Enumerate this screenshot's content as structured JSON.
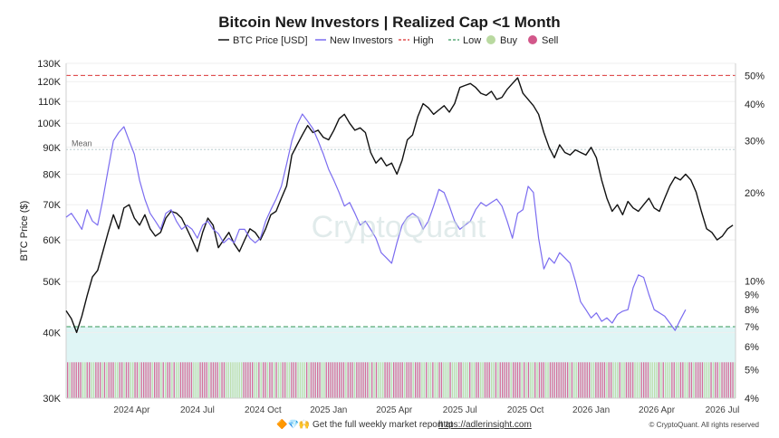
{
  "chart_data": {
    "type": "line",
    "title": "Bitcoin New Investors | Realized Cap <1 Month",
    "ylabel": "BTC Price ($)",
    "legend": [
      {
        "label": "BTC Price [USD]",
        "kind": "line",
        "color": "#111111"
      },
      {
        "label": "New Investors",
        "kind": "line",
        "color": "#7b6cf0"
      },
      {
        "label": "High",
        "kind": "dashed",
        "color": "#e05050"
      },
      {
        "label": "Low",
        "kind": "dashed",
        "color": "#5aaa78"
      },
      {
        "label": "Buy",
        "kind": "dot",
        "color": "#b9d9a0"
      },
      {
        "label": "Sell",
        "kind": "dot",
        "color": "#d2578a"
      }
    ],
    "legend_position": "top-center",
    "y_left": {
      "scale": "log",
      "range": [
        30000,
        130000
      ],
      "ticks": [
        {
          "v": 30000,
          "label": "30K"
        },
        {
          "v": 40000,
          "label": "40K"
        },
        {
          "v": 50000,
          "label": "50K"
        },
        {
          "v": 60000,
          "label": "60K"
        },
        {
          "v": 70000,
          "label": "70K"
        },
        {
          "v": 80000,
          "label": "80K"
        },
        {
          "v": 90000,
          "label": "90K"
        },
        {
          "v": 100000,
          "label": "100K"
        },
        {
          "v": 110000,
          "label": "110K"
        },
        {
          "v": 120000,
          "label": "120K"
        },
        {
          "v": 130000,
          "label": "130K"
        }
      ]
    },
    "y_right": {
      "scale": "log",
      "range": [
        4,
        55
      ],
      "unit": "%",
      "ticks": [
        {
          "v": 4,
          "label": "4%"
        },
        {
          "v": 5,
          "label": "5%"
        },
        {
          "v": 6,
          "label": "6%"
        },
        {
          "v": 7,
          "label": "7%"
        },
        {
          "v": 8,
          "label": "8%"
        },
        {
          "v": 9,
          "label": "9%"
        },
        {
          "v": 10,
          "label": "10%"
        },
        {
          "v": 20,
          "label": "20%"
        },
        {
          "v": 30,
          "label": "30%"
        },
        {
          "v": 40,
          "label": "40%"
        },
        {
          "v": 50,
          "label": "50%"
        }
      ]
    },
    "x_range": [
      2024.0,
      2026.55
    ],
    "x_ticks": [
      {
        "v": 2024.25,
        "label": "2024 Apr"
      },
      {
        "v": 2024.5,
        "label": "2024 Jul"
      },
      {
        "v": 2024.75,
        "label": "2024 Oct"
      },
      {
        "v": 2025.0,
        "label": "2025 Jan"
      },
      {
        "v": 2025.25,
        "label": "2025 Apr"
      },
      {
        "v": 2025.5,
        "label": "2025 Jul"
      },
      {
        "v": 2025.75,
        "label": "2025 Oct"
      },
      {
        "v": 2026.0,
        "label": "2026 Jan"
      },
      {
        "v": 2026.25,
        "label": "2026 Apr"
      },
      {
        "v": 2026.5,
        "label": "2026 Jul"
      }
    ],
    "reference_lines": {
      "high": 50,
      "low": 7,
      "mean": {
        "value": 28,
        "label": "Mean"
      }
    },
    "bands": {
      "low_zone": [
        4,
        7
      ]
    },
    "series": [
      {
        "name": "BTC Price [USD]",
        "axis": "left",
        "color": "#111111",
        "points": [
          [
            2024.0,
            44000
          ],
          [
            2024.02,
            42500
          ],
          [
            2024.04,
            40000
          ],
          [
            2024.06,
            43000
          ],
          [
            2024.08,
            47000
          ],
          [
            2024.1,
            51000
          ],
          [
            2024.12,
            52500
          ],
          [
            2024.14,
            57000
          ],
          [
            2024.16,
            62000
          ],
          [
            2024.18,
            67000
          ],
          [
            2024.2,
            63000
          ],
          [
            2024.22,
            69000
          ],
          [
            2024.24,
            70000
          ],
          [
            2024.26,
            66000
          ],
          [
            2024.28,
            64000
          ],
          [
            2024.3,
            67000
          ],
          [
            2024.32,
            63000
          ],
          [
            2024.34,
            61000
          ],
          [
            2024.36,
            62000
          ],
          [
            2024.38,
            66000
          ],
          [
            2024.4,
            68000
          ],
          [
            2024.42,
            67500
          ],
          [
            2024.44,
            66000
          ],
          [
            2024.46,
            63000
          ],
          [
            2024.48,
            60000
          ],
          [
            2024.5,
            57000
          ],
          [
            2024.52,
            62000
          ],
          [
            2024.54,
            66000
          ],
          [
            2024.56,
            64000
          ],
          [
            2024.58,
            58000
          ],
          [
            2024.6,
            60000
          ],
          [
            2024.62,
            62000
          ],
          [
            2024.64,
            59000
          ],
          [
            2024.66,
            57000
          ],
          [
            2024.68,
            60000
          ],
          [
            2024.7,
            63000
          ],
          [
            2024.72,
            62000
          ],
          [
            2024.74,
            60000
          ],
          [
            2024.76,
            63000
          ],
          [
            2024.78,
            67000
          ],
          [
            2024.8,
            68000
          ],
          [
            2024.82,
            72000
          ],
          [
            2024.84,
            76000
          ],
          [
            2024.86,
            87000
          ],
          [
            2024.88,
            91000
          ],
          [
            2024.9,
            95000
          ],
          [
            2024.92,
            99000
          ],
          [
            2024.94,
            96000
          ],
          [
            2024.96,
            97000
          ],
          [
            2024.98,
            94000
          ],
          [
            2025.0,
            93000
          ],
          [
            2025.02,
            97000
          ],
          [
            2025.04,
            102000
          ],
          [
            2025.06,
            104000
          ],
          [
            2025.08,
            100000
          ],
          [
            2025.1,
            97000
          ],
          [
            2025.12,
            98000
          ],
          [
            2025.14,
            96000
          ],
          [
            2025.16,
            88000
          ],
          [
            2025.18,
            84000
          ],
          [
            2025.2,
            86000
          ],
          [
            2025.22,
            83000
          ],
          [
            2025.24,
            84000
          ],
          [
            2025.26,
            80000
          ],
          [
            2025.28,
            85000
          ],
          [
            2025.3,
            93000
          ],
          [
            2025.32,
            95000
          ],
          [
            2025.34,
            103000
          ],
          [
            2025.36,
            109000
          ],
          [
            2025.38,
            107000
          ],
          [
            2025.4,
            104000
          ],
          [
            2025.42,
            106000
          ],
          [
            2025.44,
            108000
          ],
          [
            2025.46,
            105000
          ],
          [
            2025.48,
            109000
          ],
          [
            2025.5,
            117000
          ],
          [
            2025.52,
            118000
          ],
          [
            2025.54,
            119000
          ],
          [
            2025.56,
            117000
          ],
          [
            2025.58,
            114000
          ],
          [
            2025.6,
            113000
          ],
          [
            2025.62,
            115000
          ],
          [
            2025.64,
            111000
          ],
          [
            2025.66,
            112000
          ],
          [
            2025.68,
            116000
          ],
          [
            2025.7,
            119000
          ],
          [
            2025.72,
            122000
          ],
          [
            2025.74,
            114000
          ],
          [
            2025.76,
            111000
          ],
          [
            2025.78,
            108000
          ],
          [
            2025.8,
            104000
          ],
          [
            2025.82,
            96000
          ],
          [
            2025.84,
            90000
          ],
          [
            2025.86,
            86000
          ],
          [
            2025.88,
            91000
          ],
          [
            2025.9,
            88000
          ],
          [
            2025.92,
            87000
          ],
          [
            2025.94,
            89000
          ],
          [
            2025.96,
            88000
          ],
          [
            2025.98,
            87000
          ],
          [
            2026.0,
            90000
          ],
          [
            2026.02,
            86000
          ],
          [
            2026.04,
            78000
          ],
          [
            2026.06,
            72000
          ],
          [
            2026.08,
            68000
          ],
          [
            2026.1,
            70000
          ],
          [
            2026.12,
            67000
          ],
          [
            2026.14,
            71000
          ],
          [
            2026.16,
            69000
          ],
          [
            2026.18,
            68000
          ],
          [
            2026.2,
            70000
          ],
          [
            2026.22,
            72000
          ],
          [
            2026.24,
            69000
          ],
          [
            2026.26,
            68000
          ],
          [
            2026.28,
            72000
          ],
          [
            2026.3,
            76000
          ],
          [
            2026.32,
            79000
          ],
          [
            2026.34,
            78000
          ],
          [
            2026.36,
            80000
          ],
          [
            2026.38,
            78000
          ],
          [
            2026.4,
            74000
          ],
          [
            2026.42,
            68000
          ],
          [
            2026.44,
            63000
          ],
          [
            2026.46,
            62000
          ],
          [
            2026.48,
            60000
          ],
          [
            2026.5,
            61000
          ],
          [
            2026.52,
            63000
          ],
          [
            2026.54,
            64000
          ]
        ]
      },
      {
        "name": "New Investors",
        "axis": "right",
        "color": "#7b6cf0",
        "points": [
          [
            2024.0,
            16.5
          ],
          [
            2024.02,
            17.0
          ],
          [
            2024.04,
            16.0
          ],
          [
            2024.06,
            15.0
          ],
          [
            2024.08,
            17.5
          ],
          [
            2024.1,
            16.0
          ],
          [
            2024.12,
            15.5
          ],
          [
            2024.14,
            19.0
          ],
          [
            2024.16,
            24.0
          ],
          [
            2024.18,
            30.0
          ],
          [
            2024.2,
            32.0
          ],
          [
            2024.22,
            33.5
          ],
          [
            2024.24,
            30.0
          ],
          [
            2024.26,
            27.0
          ],
          [
            2024.28,
            22.0
          ],
          [
            2024.3,
            19.0
          ],
          [
            2024.32,
            17.0
          ],
          [
            2024.34,
            16.0
          ],
          [
            2024.36,
            15.0
          ],
          [
            2024.38,
            17.0
          ],
          [
            2024.4,
            17.5
          ],
          [
            2024.42,
            16.0
          ],
          [
            2024.44,
            15.0
          ],
          [
            2024.46,
            15.5
          ],
          [
            2024.48,
            15.0
          ],
          [
            2024.5,
            14.0
          ],
          [
            2024.52,
            15.5
          ],
          [
            2024.54,
            16.0
          ],
          [
            2024.56,
            15.0
          ],
          [
            2024.58,
            14.5
          ],
          [
            2024.6,
            13.5
          ],
          [
            2024.62,
            14.0
          ],
          [
            2024.64,
            13.5
          ],
          [
            2024.66,
            15.0
          ],
          [
            2024.68,
            15.0
          ],
          [
            2024.7,
            14.0
          ],
          [
            2024.72,
            13.5
          ],
          [
            2024.74,
            14.0
          ],
          [
            2024.76,
            16.0
          ],
          [
            2024.78,
            17.5
          ],
          [
            2024.8,
            19.0
          ],
          [
            2024.82,
            21.0
          ],
          [
            2024.84,
            25.0
          ],
          [
            2024.86,
            30.0
          ],
          [
            2024.88,
            34.0
          ],
          [
            2024.9,
            37.0
          ],
          [
            2024.92,
            35.0
          ],
          [
            2024.94,
            33.0
          ],
          [
            2024.96,
            30.0
          ],
          [
            2024.98,
            27.0
          ],
          [
            2025.0,
            24.0
          ],
          [
            2025.02,
            22.0
          ],
          [
            2025.04,
            20.0
          ],
          [
            2025.06,
            18.0
          ],
          [
            2025.08,
            18.5
          ],
          [
            2025.1,
            17.0
          ],
          [
            2025.12,
            15.5
          ],
          [
            2025.14,
            16.0
          ],
          [
            2025.16,
            15.0
          ],
          [
            2025.18,
            14.0
          ],
          [
            2025.2,
            12.5
          ],
          [
            2025.22,
            12.0
          ],
          [
            2025.24,
            11.5
          ],
          [
            2025.26,
            13.5
          ],
          [
            2025.28,
            15.5
          ],
          [
            2025.3,
            16.5
          ],
          [
            2025.32,
            17.0
          ],
          [
            2025.34,
            16.5
          ],
          [
            2025.36,
            15.0
          ],
          [
            2025.38,
            16.0
          ],
          [
            2025.4,
            18.0
          ],
          [
            2025.42,
            20.5
          ],
          [
            2025.44,
            20.0
          ],
          [
            2025.46,
            18.0
          ],
          [
            2025.48,
            16.0
          ],
          [
            2025.5,
            15.0
          ],
          [
            2025.52,
            15.5
          ],
          [
            2025.54,
            16.0
          ],
          [
            2025.56,
            17.5
          ],
          [
            2025.58,
            18.5
          ],
          [
            2025.6,
            18.0
          ],
          [
            2025.62,
            18.5
          ],
          [
            2025.64,
            19.0
          ],
          [
            2025.66,
            18.0
          ],
          [
            2025.68,
            16.0
          ],
          [
            2025.7,
            14.0
          ],
          [
            2025.72,
            17.0
          ],
          [
            2025.74,
            17.5
          ],
          [
            2025.76,
            21.0
          ],
          [
            2025.78,
            20.0
          ],
          [
            2025.8,
            14.0
          ],
          [
            2025.82,
            11.0
          ],
          [
            2025.84,
            12.0
          ],
          [
            2025.86,
            11.5
          ],
          [
            2025.88,
            12.5
          ],
          [
            2025.9,
            12.0
          ],
          [
            2025.92,
            11.5
          ],
          [
            2025.94,
            10.0
          ],
          [
            2025.96,
            8.5
          ],
          [
            2025.98,
            8.0
          ],
          [
            2026.0,
            7.5
          ],
          [
            2026.02,
            7.8
          ],
          [
            2026.04,
            7.3
          ],
          [
            2026.06,
            7.5
          ],
          [
            2026.08,
            7.2
          ],
          [
            2026.1,
            7.7
          ],
          [
            2026.12,
            7.9
          ],
          [
            2026.14,
            8.0
          ],
          [
            2026.16,
            9.5
          ],
          [
            2026.18,
            10.5
          ],
          [
            2026.2,
            10.3
          ],
          [
            2026.22,
            9.0
          ],
          [
            2026.24,
            8.0
          ],
          [
            2026.26,
            7.8
          ],
          [
            2026.28,
            7.6
          ],
          [
            2026.3,
            7.2
          ],
          [
            2026.32,
            6.8
          ],
          [
            2026.34,
            7.4
          ],
          [
            2026.36,
            8.0
          ]
        ]
      }
    ],
    "signals": {
      "note_sell_fraction": 0.55
    }
  },
  "watermark": "CryptoQuant",
  "footer": {
    "emojis": "🔶💎🙌",
    "text": "Get the full weekly market report at ",
    "link": "https://adlerinsight.com",
    "copyright": "© CryptoQuant. All rights reserved"
  }
}
